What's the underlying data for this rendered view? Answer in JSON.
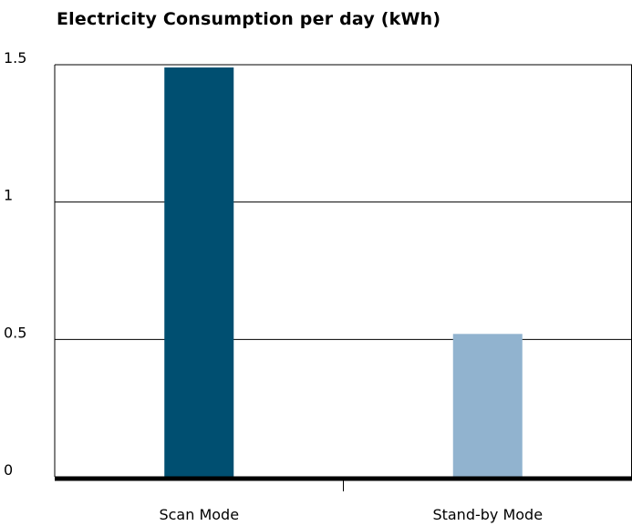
{
  "chart_data": {
    "type": "bar",
    "title": "Electricity Consumption per day (kWh)",
    "categories": [
      "Scan Mode",
      "Stand-by Mode"
    ],
    "values": [
      1.49,
      0.52
    ],
    "bar_colors": [
      "#004f71",
      "#91b3cf"
    ],
    "ylim": [
      0,
      1.5
    ],
    "yticks": [
      0,
      0.5,
      1,
      1.5
    ],
    "ytick_labels": [
      "0",
      "0.5",
      "1",
      "1.5"
    ],
    "xlabel": "",
    "ylabel": "",
    "grid": true,
    "legend": "none"
  }
}
